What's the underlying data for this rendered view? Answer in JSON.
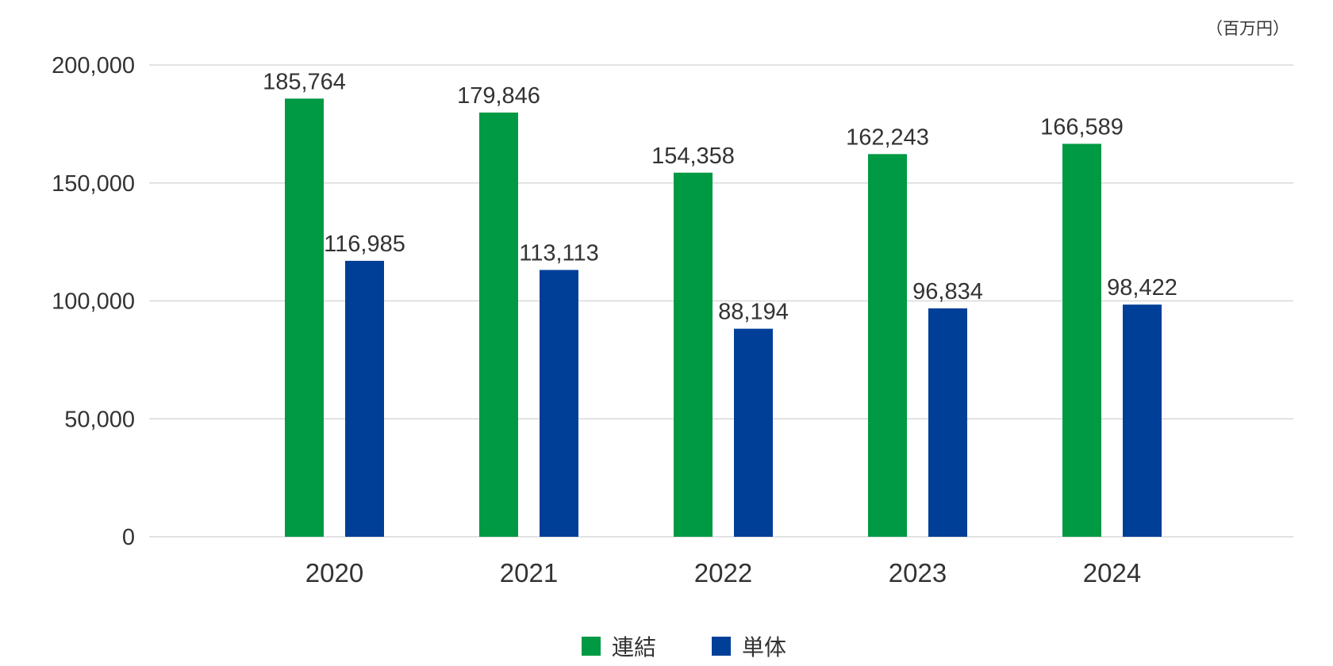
{
  "chart_data": {
    "type": "bar",
    "unit": "（百万円）",
    "categories": [
      "2020",
      "2021",
      "2022",
      "2023",
      "2024"
    ],
    "series": [
      {
        "name": "連結",
        "color": "#009944",
        "values": [
          185764,
          179846,
          154358,
          162243,
          166589
        ],
        "labels": [
          "185,764",
          "179,846",
          "154,358",
          "162,243",
          "166,589"
        ]
      },
      {
        "name": "単体",
        "color": "#003f98",
        "values": [
          116985,
          113113,
          88194,
          96834,
          98422
        ],
        "labels": [
          "116,985",
          "113,113",
          "88,194",
          "96,834",
          "98,422"
        ]
      }
    ],
    "ylim": [
      0,
      200000
    ],
    "yticks": [
      0,
      50000,
      100000,
      150000,
      200000
    ],
    "ytick_labels": [
      "0",
      "50,000",
      "100,000",
      "150,000",
      "200,000"
    ],
    "grid": true,
    "legend_position": "bottom-center"
  }
}
